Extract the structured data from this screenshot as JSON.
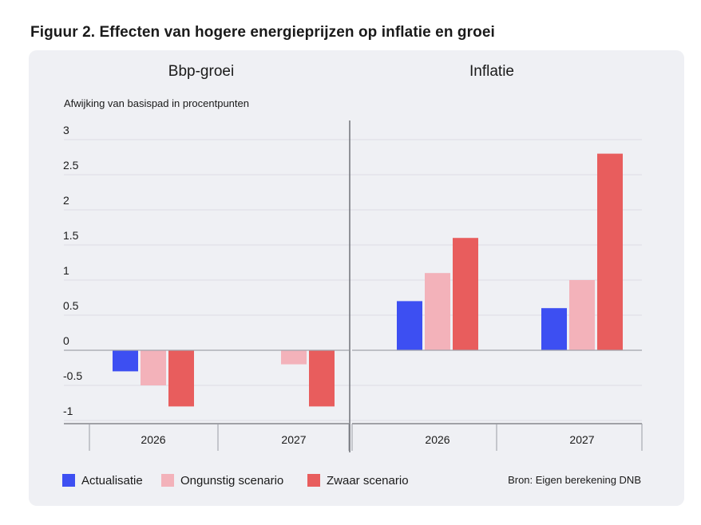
{
  "figure_title": "Figuur 2. Effecten van hogere energieprijzen op inflatie en groei",
  "chart_data": [
    {
      "type": "bar",
      "title": "Bbp-groei",
      "ylabel": "Afwijking van basispad in procentpunten",
      "ylim": [
        -1,
        3
      ],
      "y_ticks": [
        "3",
        "2.5",
        "2",
        "1.5",
        "1",
        "0.5",
        "0",
        "-0.5",
        "-1"
      ],
      "y_tick_values": [
        3,
        2.5,
        2,
        1.5,
        1,
        0.5,
        0,
        -0.5,
        -1
      ],
      "categories": [
        "2026",
        "2027"
      ],
      "series": [
        {
          "name": "Actualisatie",
          "values": [
            -0.3,
            null
          ]
        },
        {
          "name": "Ongunstig scenario",
          "values": [
            -0.5,
            -0.2
          ]
        },
        {
          "name": "Zwaar scenario",
          "values": [
            -0.8,
            -0.8
          ]
        }
      ]
    },
    {
      "type": "bar",
      "title": "Inflatie",
      "ylim": [
        -1,
        3
      ],
      "categories": [
        "2026",
        "2027"
      ],
      "series": [
        {
          "name": "Actualisatie",
          "values": [
            0.7,
            0.6
          ]
        },
        {
          "name": "Ongunstig scenario",
          "values": [
            1.1,
            1.0
          ]
        },
        {
          "name": "Zwaar scenario",
          "values": [
            1.6,
            2.8
          ]
        }
      ]
    }
  ],
  "legend": [
    {
      "label": "Actualisatie",
      "color": "#3d4ff2"
    },
    {
      "label": "Ongunstig scenario",
      "color": "#f3b2ba"
    },
    {
      "label": "Zwaar scenario",
      "color": "#e85d5d"
    }
  ],
  "source": "Bron: Eigen berekening DNB"
}
